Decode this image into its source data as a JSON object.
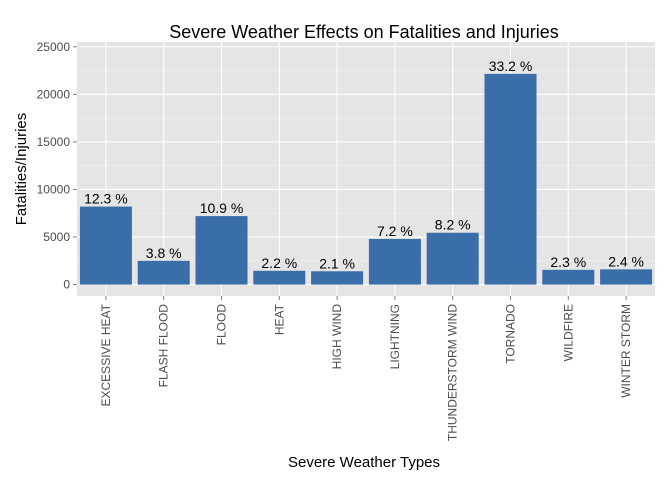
{
  "chart_data": {
    "type": "bar",
    "title": "Severe Weather Effects on Fatalities and Injuries",
    "xlabel": "Severe Weather Types",
    "ylabel": "Fatalities/Injuries",
    "ylim": [
      -1200,
      25500
    ],
    "yticks": [
      0,
      5000,
      10000,
      15000,
      20000,
      25000
    ],
    "ytick_labels": [
      "0",
      "5000",
      "10000",
      "15000",
      "20000",
      "25000"
    ],
    "categories": [
      "EXCESSIVE HEAT",
      "FLASH FLOOD",
      "FLOOD",
      "HEAT",
      "HIGH WIND",
      "LIGHTNING",
      "THUNDERSTORM WIND",
      "TORNADO",
      "WILDFIRE",
      "WINTER STORM"
    ],
    "values": [
      8200,
      2500,
      7200,
      1450,
      1400,
      4800,
      5450,
      22150,
      1550,
      1600
    ],
    "data_labels": [
      "12.3 %",
      "3.8 %",
      "10.9 %",
      "2.2 %",
      "2.1 %",
      "7.2 %",
      "8.2 %",
      "33.2 %",
      "2.3 %",
      "2.4 %"
    ],
    "grid": true,
    "legend": "none",
    "colors": {
      "bar": "#3A6EA8",
      "panel": "#E5E5E5",
      "grid_major": "#FFFFFF",
      "grid_minor": "#F2F2F2",
      "tick_text": "#4D4D4D",
      "tick_mark": "#7F7F7F",
      "text": "#000000"
    }
  }
}
